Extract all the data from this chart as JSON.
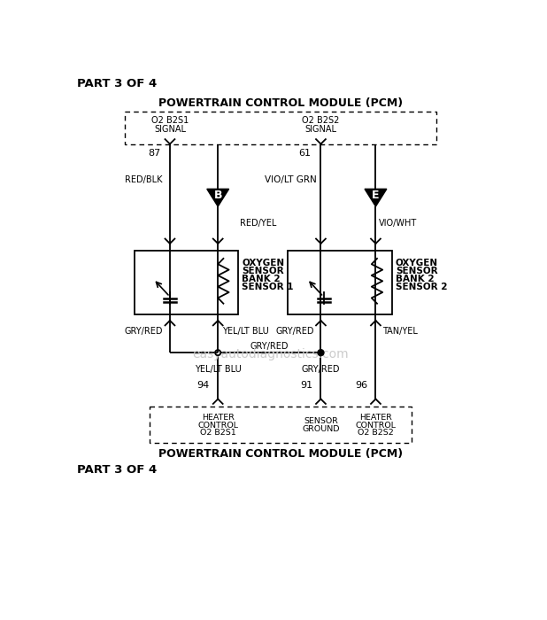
{
  "title": "PART 3 OF 4",
  "pcm_label": "POWERTRAIN CONTROL MODULE (PCM)",
  "watermark": "easyautodiagnostics.com",
  "bg_color": "#ffffff",
  "line_color": "#000000",
  "signal_L_line1": "O2 B2S1",
  "signal_L_line2": "SIGNAL",
  "signal_R_line1": "O2 B2S2",
  "signal_R_line2": "SIGNAL",
  "pin_L": "87",
  "pin_R": "61",
  "wire_L_signal": "RED/BLK",
  "wire_L_heater": "RED/YEL",
  "wire_R_signal": "VIO/LT GRN",
  "wire_R_heater": "VIO/WHT",
  "connector_L": "B",
  "connector_R": "E",
  "sensor_L_label": [
    "OXYGEN",
    "SENSOR",
    "BANK 2",
    "SENSOR 1"
  ],
  "sensor_R_label": [
    "OXYGEN",
    "SENSOR",
    "BANK 2",
    "SENSOR 2"
  ],
  "wire_bot_L1": "GRY/RED",
  "wire_bot_L2": "YEL/LT BLU",
  "wire_bot_R1": "GRY/RED",
  "wire_bot_R2": "TAN/YEL",
  "wire_junction": "GRY/RED",
  "wire_below_junc_L": "YEL/LT BLU",
  "wire_below_junc_R": "GRY/RED",
  "pin_94": "94",
  "pin_91": "91",
  "pin_96": "96",
  "pcm_bot_L": [
    "HEATER",
    "CONTROL",
    "O2 B2S1"
  ],
  "pcm_bot_M": [
    "SENSOR",
    "GROUND"
  ],
  "pcm_bot_R": [
    "HEATER",
    "CONTROL",
    "O2 B2S2"
  ]
}
